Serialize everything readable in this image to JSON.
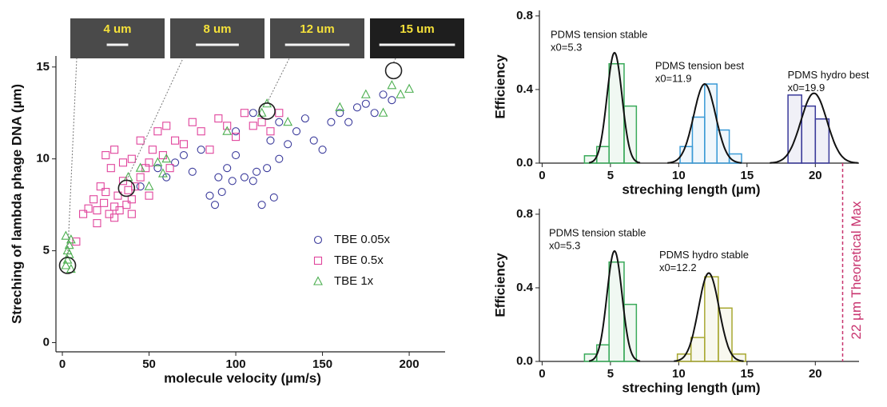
{
  "chart_data": [
    {
      "type": "scatter",
      "xlabel": "molecule velocity (µm/s)",
      "ylabel": "Streching of lambda phage DNA (µm)",
      "xlim": [
        -3.7,
        220.7
      ],
      "ylim": [
        -0.5,
        15.6
      ],
      "xticks": [
        0,
        50,
        100,
        150,
        200
      ],
      "yticks": [
        0,
        5,
        10,
        15
      ],
      "legend": "lower right",
      "series": [
        {
          "name": "TBE 0.05x",
          "color": "#3c3c9c",
          "marker": "circle",
          "x": [
            45,
            55,
            60,
            65,
            70,
            75,
            80,
            85,
            88,
            90,
            92,
            95,
            98,
            100,
            105,
            110,
            112,
            115,
            118,
            120,
            122,
            125,
            130,
            135,
            140,
            145,
            150,
            155,
            160,
            165,
            170,
            175,
            180,
            185,
            190,
            100,
            110,
            125
          ],
          "values": [
            8.5,
            9.5,
            9.0,
            9.8,
            10.2,
            9.3,
            10.5,
            8.0,
            7.5,
            9.0,
            8.2,
            9.5,
            8.8,
            10.2,
            9.0,
            8.8,
            9.3,
            7.5,
            9.5,
            11.0,
            7.9,
            12.0,
            10.8,
            11.5,
            12.2,
            11.0,
            10.5,
            12.0,
            12.5,
            12.0,
            12.8,
            13.0,
            12.5,
            13.5,
            13.2,
            11.5,
            12.5,
            10.0
          ]
        },
        {
          "name": "TBE 0.5x",
          "color": "#e0449c",
          "marker": "square",
          "x": [
            8,
            12,
            15,
            18,
            20,
            22,
            24,
            25,
            27,
            28,
            30,
            30,
            32,
            33,
            35,
            35,
            37,
            38,
            40,
            40,
            42,
            45,
            45,
            48,
            50,
            52,
            55,
            58,
            60,
            62,
            65,
            70,
            75,
            80,
            85,
            90,
            95,
            100,
            105,
            110,
            115,
            120,
            125,
            30,
            25,
            20,
            40,
            50
          ],
          "values": [
            5.5,
            7.0,
            7.3,
            7.8,
            7.2,
            8.5,
            7.6,
            10.2,
            7.0,
            9.5,
            7.4,
            10.5,
            8.0,
            7.2,
            8.8,
            9.8,
            7.5,
            8.3,
            7.8,
            10.0,
            8.5,
            9.0,
            11.0,
            9.5,
            9.8,
            10.5,
            11.5,
            10.2,
            11.8,
            9.5,
            11.0,
            10.8,
            12.0,
            11.5,
            10.5,
            12.2,
            11.8,
            11.2,
            12.5,
            11.8,
            12.0,
            11.5,
            12.5,
            6.8,
            8.2,
            6.5,
            7.0,
            8.0
          ]
        },
        {
          "name": "TBE 1x",
          "color": "#4caf50",
          "marker": "triangle",
          "x": [
            2,
            3,
            3,
            4,
            4,
            5,
            2,
            5,
            38,
            45,
            50,
            55,
            58,
            60,
            95,
            115,
            118,
            130,
            160,
            175,
            185,
            190,
            195,
            200
          ],
          "values": [
            4.2,
            4.5,
            5.0,
            5.3,
            4.8,
            5.6,
            5.8,
            4.0,
            9.0,
            9.5,
            8.5,
            9.8,
            9.2,
            10.0,
            11.5,
            12.5,
            13.0,
            12.0,
            12.8,
            13.5,
            12.5,
            14.0,
            13.5,
            13.8
          ]
        }
      ],
      "annotations": [
        {
          "label": "4 um",
          "x": 3,
          "y": 4.2
        },
        {
          "label": "8 um",
          "x": 37,
          "y": 8.4
        },
        {
          "label": "12 um",
          "x": 118,
          "y": 12.6
        },
        {
          "label": "15 um",
          "x": 191,
          "y": 14.8
        }
      ]
    },
    {
      "type": "histogram",
      "xlabel": "streching length (µm)",
      "ylabel": "Efficiency",
      "xlim": [
        -0.2,
        23.2
      ],
      "ylim": [
        0,
        0.83
      ],
      "xticks": [
        0,
        5,
        10,
        15,
        20
      ],
      "yticks": [
        {
          "value": 0,
          "label": "0.0"
        },
        {
          "value": 0.4,
          "label": "0.4"
        },
        {
          "value": 0.8,
          "label": "0.8"
        }
      ],
      "series": [
        {
          "name": "PDMS tension stable",
          "color": "#3aaa5a",
          "bins": [
            3.1,
            4.0,
            4.9,
            6.0,
            6.9
          ],
          "values": [
            0.04,
            0.09,
            0.54,
            0.31
          ],
          "fit": {
            "x0": 5.3,
            "x0_label": "x0=5.3",
            "amplitude": 0.6,
            "sigma": 0.55
          }
        },
        {
          "name": "PDMS tension best",
          "color": "#3a9ad6",
          "bins": [
            10.1,
            11.0,
            11.9,
            12.8,
            13.7,
            14.6
          ],
          "values": [
            0.09,
            0.25,
            0.43,
            0.18,
            0.05
          ],
          "fit": {
            "x0": 11.9,
            "x0_label": "x0=11.9",
            "amplitude": 0.43,
            "sigma": 0.8
          }
        },
        {
          "name": "PDMS hydro best",
          "color": "#3a3a9a",
          "bins": [
            18.0,
            19.0,
            20.0,
            21.0
          ],
          "values": [
            0.37,
            0.31,
            0.24
          ],
          "fit": {
            "x0": 19.9,
            "x0_label": "x0=19.9",
            "amplitude": 0.38,
            "sigma": 0.95
          }
        }
      ]
    },
    {
      "type": "histogram",
      "xlabel": "streching length (µm)",
      "ylabel": "Efficiency",
      "xlim": [
        -0.2,
        23.2
      ],
      "ylim": [
        0,
        0.83
      ],
      "xticks": [
        0,
        5,
        10,
        15,
        20
      ],
      "yticks": [
        {
          "value": 0,
          "label": "0.0"
        },
        {
          "value": 0.4,
          "label": "0.4"
        },
        {
          "value": 0.8,
          "label": "0.8"
        }
      ],
      "series": [
        {
          "name": "PDMS tension stable",
          "color": "#3aaa5a",
          "bins": [
            3.1,
            4.0,
            4.9,
            6.0,
            6.9
          ],
          "values": [
            0.04,
            0.09,
            0.54,
            0.31
          ],
          "fit": {
            "x0": 5.3,
            "x0_label": "x0=5.3",
            "amplitude": 0.6,
            "sigma": 0.55
          }
        },
        {
          "name": "PDMS hydro stable",
          "color": "#a8a832",
          "bins": [
            9.9,
            10.9,
            11.9,
            12.9,
            13.9,
            14.9
          ],
          "values": [
            0.04,
            0.13,
            0.46,
            0.29,
            0.04
          ],
          "fit": {
            "x0": 12.2,
            "x0_label": "x0=12.2",
            "amplitude": 0.48,
            "sigma": 0.75
          }
        }
      ],
      "reference_line": {
        "x": 22,
        "label": "22 µm Theoretical Max",
        "color": "#c8336e"
      }
    }
  ]
}
